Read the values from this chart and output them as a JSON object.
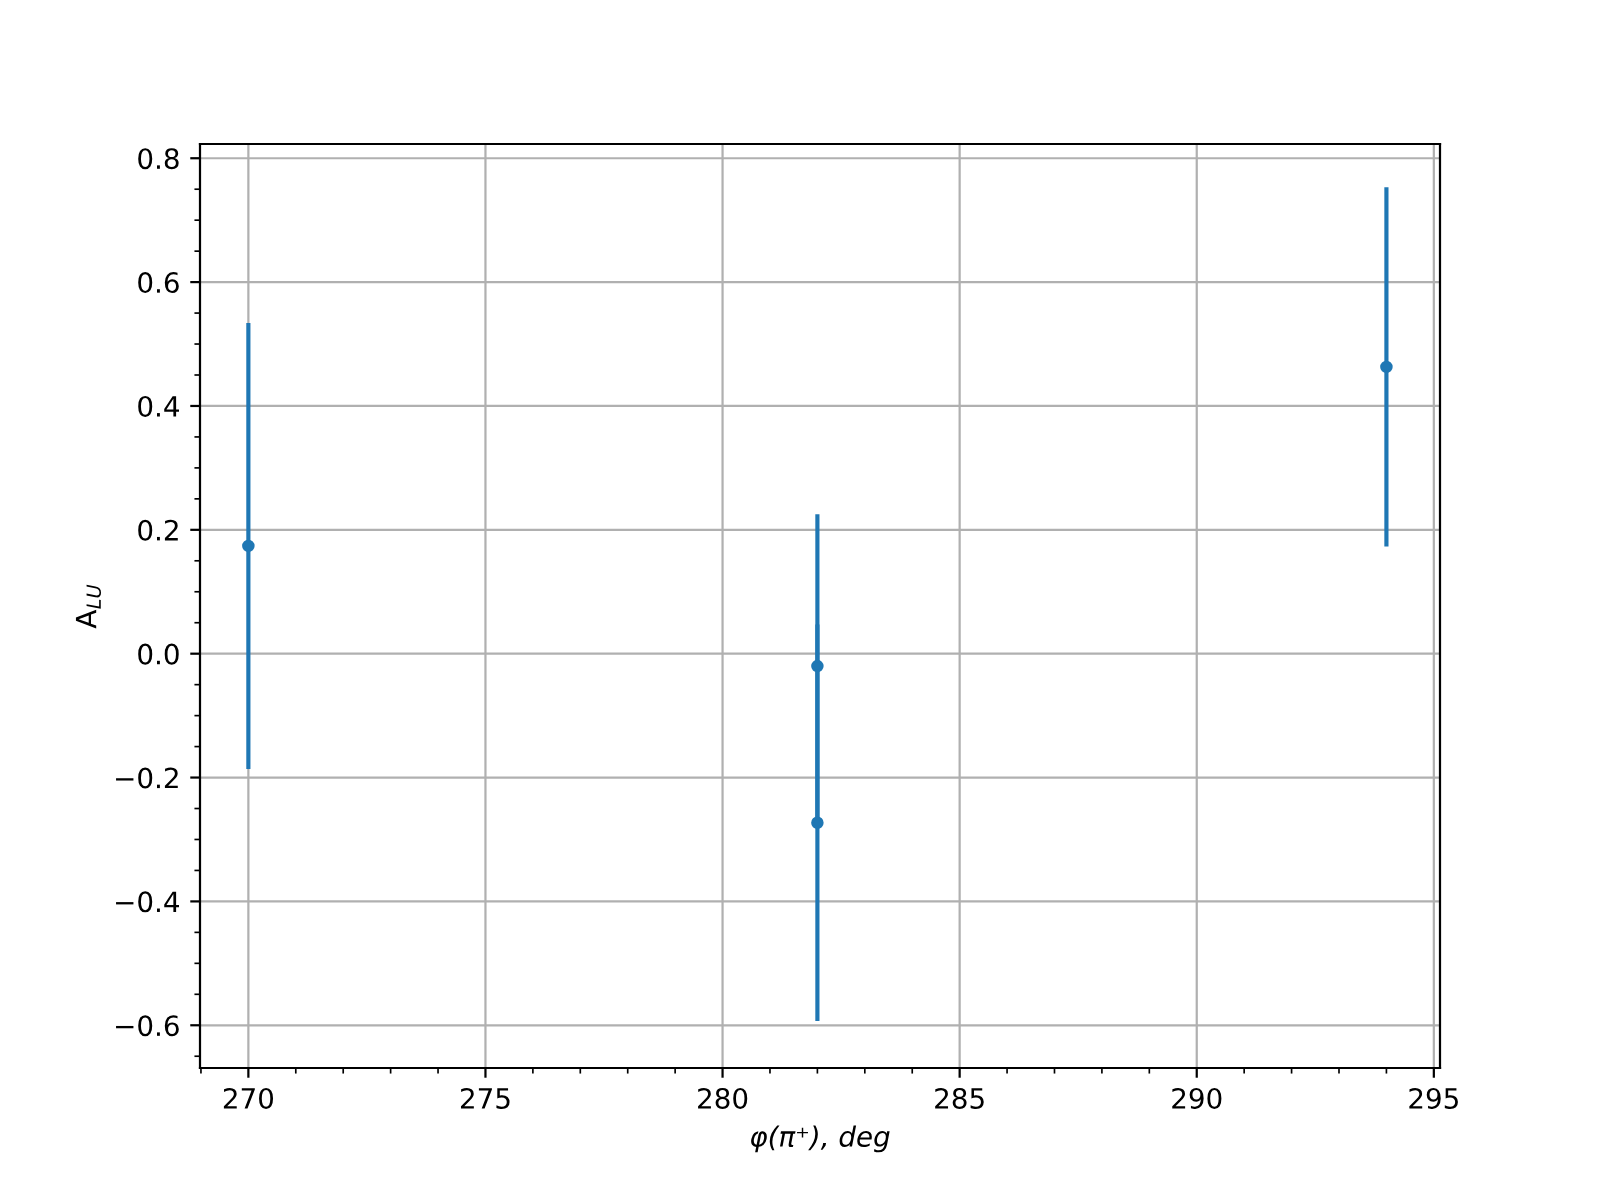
{
  "chart_data": {
    "type": "scatter",
    "xlabel": "φ(π⁺), deg",
    "ylabel": "A$_{LU}$",
    "x": [
      270,
      282,
      282,
      294
    ],
    "series": [
      {
        "color": "#1f77b4",
        "values": [
          0.174,
          -0.02,
          -0.273,
          0.463
        ],
        "errors": [
          0.36,
          0.245,
          0.32,
          0.29
        ]
      }
    ],
    "xlim": [
      268.98,
      295.13
    ],
    "ylim": [
      -0.669,
      0.823
    ],
    "xticks": [
      270,
      275,
      280,
      285,
      290,
      295
    ],
    "yticks": [
      {
        "value": -0.6,
        "label": "−0.6"
      },
      {
        "value": -0.4,
        "label": "−0.4"
      },
      {
        "value": -0.2,
        "label": "−0.2"
      },
      {
        "value": 0.0,
        "label": "0.0"
      },
      {
        "value": 0.2,
        "label": "0.2"
      },
      {
        "value": 0.4,
        "label": "0.4"
      },
      {
        "value": 0.6,
        "label": "0.6"
      },
      {
        "value": 0.8,
        "label": "0.8"
      }
    ],
    "grid": true,
    "marker": "circle"
  }
}
